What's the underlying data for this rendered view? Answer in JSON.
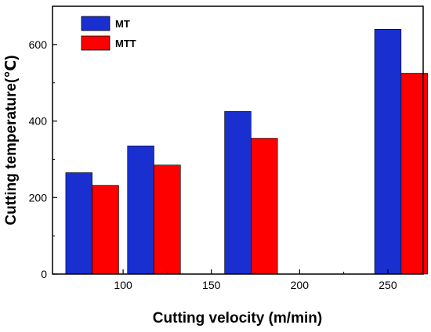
{
  "chart_data": {
    "type": "bar",
    "xlabel": "Cutting velocity (m/min)",
    "ylabel": "Cutting temperature(℃)",
    "x_ticks": [
      "100",
      "150",
      "200",
      "250"
    ],
    "y_ticks": [
      "0",
      "200",
      "400",
      "600"
    ],
    "xlim": [
      60,
      270
    ],
    "ylim": [
      0,
      700
    ],
    "grid": false,
    "legend_position": "top-left",
    "bar_width_units": 15,
    "series": [
      {
        "name": "MT",
        "color": "#1a2fd0",
        "x": [
          75,
          110,
          165,
          250
        ],
        "values": [
          265,
          335,
          425,
          640
        ]
      },
      {
        "name": "MTT",
        "color": "#ff0000",
        "x": [
          90,
          125,
          180,
          265
        ],
        "values": [
          232,
          285,
          355,
          525
        ]
      }
    ]
  }
}
